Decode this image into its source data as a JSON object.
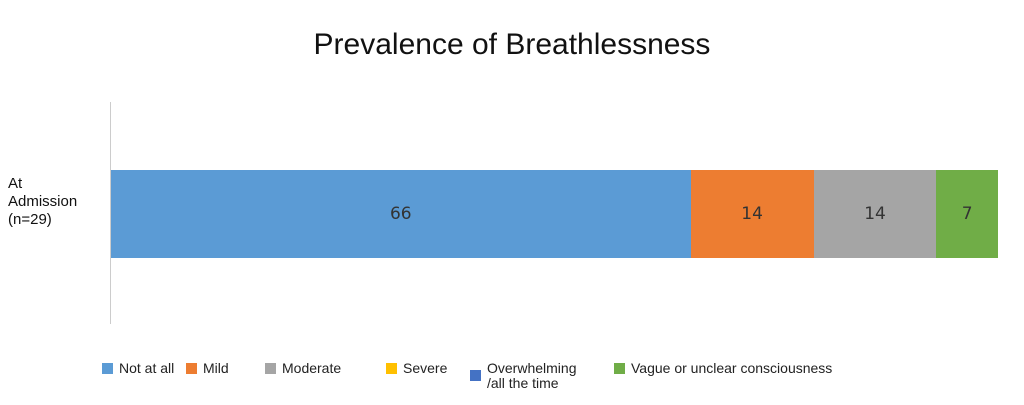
{
  "chart_data": {
    "type": "bar",
    "orientation": "horizontal",
    "stacked": true,
    "title": "Prevalence of Breathlessness",
    "categories": [
      "At\nAdmission\n(n=29)"
    ],
    "series": [
      {
        "name": "Not at all",
        "values": [
          66
        ],
        "color": "#5B9BD5"
      },
      {
        "name": "Mild",
        "values": [
          14
        ],
        "color": "#ED7D31"
      },
      {
        "name": "Moderate",
        "values": [
          14
        ],
        "color": "#A5A5A5"
      },
      {
        "name": "Severe",
        "values": [
          0
        ],
        "color": "#FFC000"
      },
      {
        "name": "Overwhelming\n/all the time",
        "values": [
          0
        ],
        "color": "#4472C4"
      },
      {
        "name": "Vague or unclear consciousness",
        "values": [
          7
        ],
        "color": "#70AD47"
      }
    ],
    "grid": false,
    "legend": "bottom"
  }
}
